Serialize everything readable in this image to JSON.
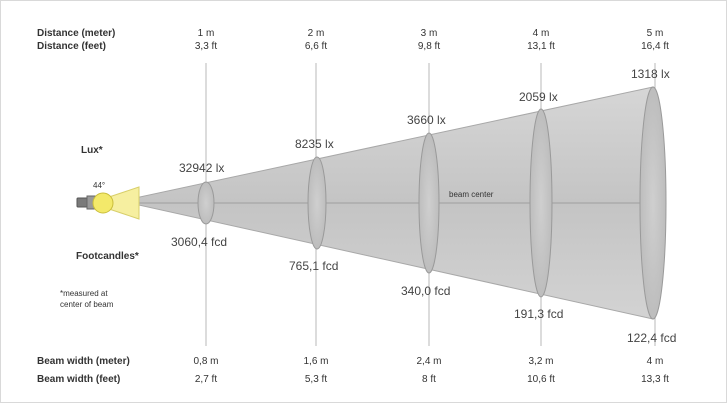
{
  "labels": {
    "distance_meter": "Distance (meter)",
    "distance_feet": "Distance (feet)",
    "beam_width_meter": "Beam width (meter)",
    "beam_width_feet": "Beam width (feet)",
    "lux": "Lux*",
    "footcandles": "Footcandles*",
    "note_line1": "*measured at",
    "note_line2": "center of beam",
    "angle": "44°",
    "beam_center": "beam center"
  },
  "columns": [
    {
      "dist_m": "1 m",
      "dist_ft": "3,3 ft",
      "width_m": "0,8 m",
      "width_ft": "2,7 ft",
      "lux": "32942 lx",
      "fcd": "3060,4 fcd"
    },
    {
      "dist_m": "2 m",
      "dist_ft": "6,6 ft",
      "width_m": "1,6 m",
      "width_ft": "5,3 ft",
      "lux": "8235 lx",
      "fcd": "765,1 fcd"
    },
    {
      "dist_m": "3 m",
      "dist_ft": "9,8 ft",
      "width_m": "2,4 m",
      "width_ft": "8 ft",
      "lux": "3660 lx",
      "fcd": "340,0 fcd"
    },
    {
      "dist_m": "4 m",
      "dist_ft": "13,1 ft",
      "width_m": "3,2 m",
      "width_ft": "10,6 ft",
      "lux": "2059 lx",
      "fcd": "191,3 fcd"
    },
    {
      "dist_m": "5 m",
      "dist_ft": "16,4 ft",
      "width_m": "4 m",
      "width_ft": "13,3 ft",
      "lux": "1318 lx",
      "fcd": "122,4 fcd"
    }
  ],
  "colors": {
    "cone": "#c8c8c8",
    "cone_edge": "#9a9a9a",
    "lamp": "#f3e96a",
    "lamp_glow": "#f7f1a8"
  }
}
